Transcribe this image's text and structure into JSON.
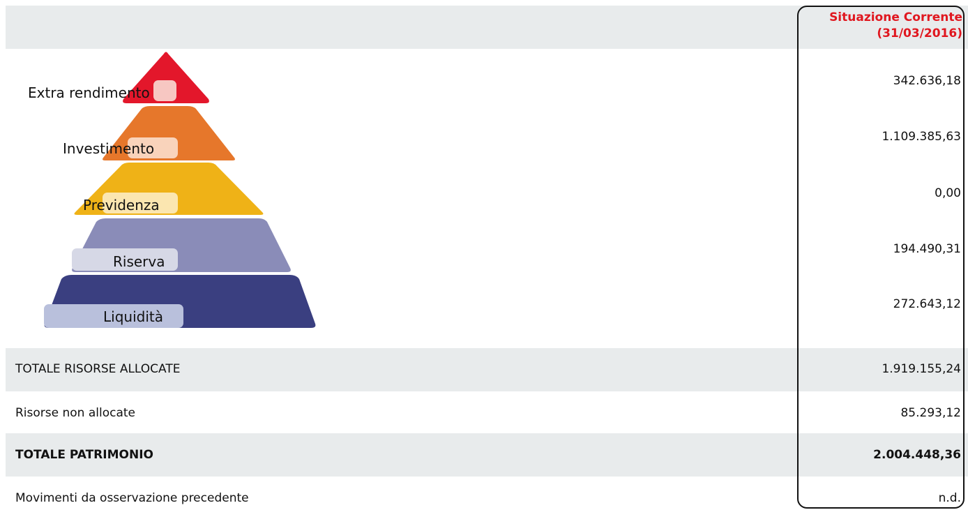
{
  "column_header": {
    "line1": "Situazione Corrente",
    "line2": "(31/03/2016)"
  },
  "pyramid": {
    "tiers": [
      {
        "label": "Extra rendimento",
        "value": "342.636,18",
        "color": "#e3172b",
        "tab_color": "#f7c7c2"
      },
      {
        "label": "Investimento",
        "value": "1.109.385,63",
        "color": "#e6772b",
        "tab_color": "#f9d3bb"
      },
      {
        "label": "Previdenza",
        "value": "0,00",
        "color": "#efb217",
        "tab_color": "#fbe6b0"
      },
      {
        "label": "Riserva",
        "value": "194.490,31",
        "color": "#8a8cb8",
        "tab_color": "#d6d8e6"
      },
      {
        "label": "Liquidità",
        "value": "272.643,12",
        "color": "#3a3f80",
        "tab_color": "#b9c0dc"
      }
    ]
  },
  "summary": {
    "allocated_label": "TOTALE RISORSE ALLOCATE",
    "allocated_value": "1.919.155,24",
    "unallocated_label": "Risorse non allocate",
    "unallocated_value": "85.293,12",
    "total_label": "TOTALE PATRIMONIO",
    "total_value": "2.004.448,36",
    "movements_label": "Movimenti da osservazione precedente",
    "movements_value": "n.d."
  }
}
